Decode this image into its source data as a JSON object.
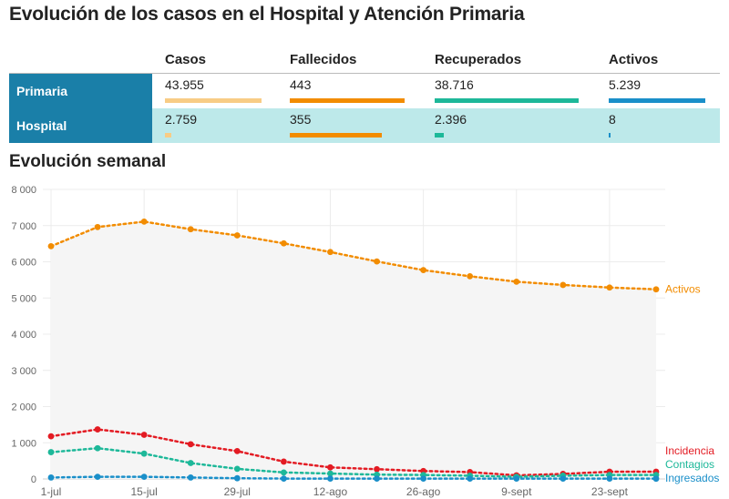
{
  "title": "Evolución de los casos en el Hospital y Atención Primaria",
  "stats": {
    "headers": [
      "Casos",
      "Fallecidos",
      "Recuperados",
      "Activos"
    ],
    "bar_colors": [
      "#f8cc85",
      "#f28c00",
      "#1db899",
      "#1a8fc9"
    ],
    "rows": [
      {
        "label": "Primaria",
        "values": [
          "43.955",
          "443",
          "38.716",
          "5.239"
        ],
        "fractions": [
          1.0,
          1.0,
          1.0,
          1.0
        ]
      },
      {
        "label": "Hospital",
        "values": [
          "2.759",
          "355",
          "2.396",
          "8"
        ],
        "fractions": [
          0.063,
          0.8,
          0.062,
          0.0015
        ]
      }
    ]
  },
  "subtitle": "Evolución semanal",
  "chart_data": {
    "type": "line",
    "x": [
      "1-jul",
      "8-jul",
      "15-jul",
      "22-jul",
      "29-jul",
      "5-ago",
      "12-ago",
      "19-ago",
      "26-ago",
      "2-sept",
      "9-sept",
      "16-sept",
      "23-sept",
      "30-sept"
    ],
    "xticks": [
      "1-jul",
      "15-jul",
      "29-jul",
      "12-ago",
      "26-ago",
      "9-sept",
      "23-sept"
    ],
    "ylim": [
      0,
      8000
    ],
    "yticks": [
      "0",
      "1 000",
      "2 000",
      "3 000",
      "4 000",
      "5 000",
      "6 000",
      "7 000",
      "8 000"
    ],
    "grid": true,
    "series": [
      {
        "name": "Activos",
        "color": "#f28c00",
        "values": [
          6430,
          6960,
          7110,
          6900,
          6730,
          6510,
          6270,
          6010,
          5770,
          5600,
          5450,
          5360,
          5290,
          5239
        ]
      },
      {
        "name": "Incidencia",
        "color": "#e31b23",
        "values": [
          1180,
          1370,
          1220,
          960,
          770,
          480,
          320,
          270,
          220,
          190,
          100,
          140,
          200,
          200
        ]
      },
      {
        "name": "Contagios",
        "color": "#1db899",
        "values": [
          740,
          850,
          700,
          440,
          280,
          180,
          150,
          120,
          110,
          90,
          60,
          90,
          110,
          110
        ]
      },
      {
        "name": "Ingresados",
        "color": "#1a8fc9",
        "values": [
          40,
          60,
          60,
          40,
          20,
          10,
          10,
          10,
          10,
          10,
          10,
          10,
          10,
          8
        ]
      }
    ]
  }
}
